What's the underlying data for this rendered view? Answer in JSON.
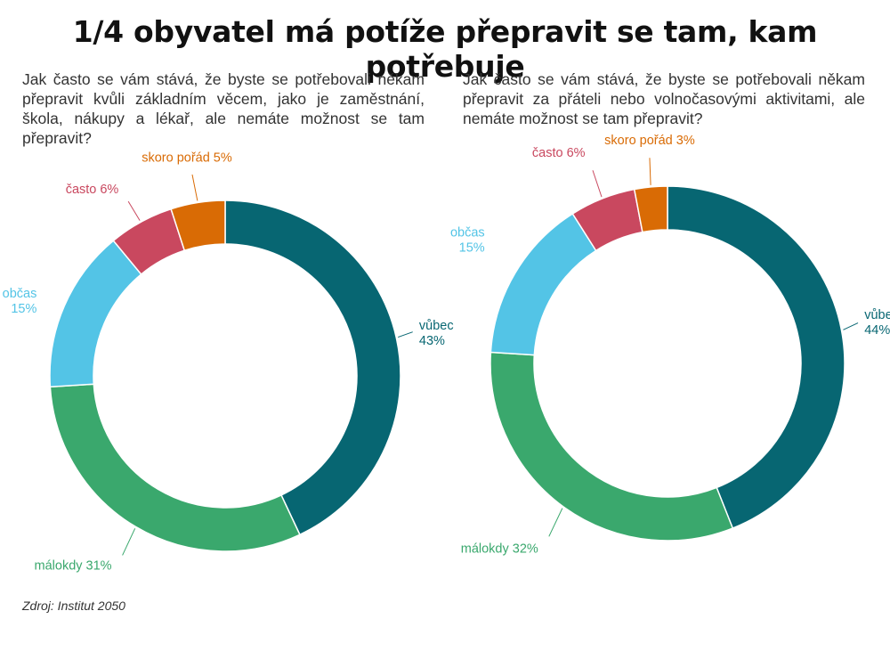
{
  "title": "1/4 obyvatel má potíže přepravit se tam, kam potřebuje",
  "source": "Zdroj: Institut 2050",
  "chart_data": [
    {
      "type": "pie",
      "variant": "donut",
      "question": "Jak často se vám stává, že byste se potřebovali někam přepravit kvůli základním věcem, jako je zaměstnání, škola, nákupy a lékař, ale nemáte možnost se tam přepravit?",
      "slices": [
        {
          "label": "vůbec",
          "value": 43,
          "value_text": "43%",
          "color": "#076672"
        },
        {
          "label": "málokdy",
          "value": 31,
          "value_text": "31%",
          "color": "#3aa86d"
        },
        {
          "label": "občas",
          "value": 15,
          "value_text": "15%",
          "color": "#53c4e6"
        },
        {
          "label": "často",
          "value": 6,
          "value_text": "6%",
          "color": "#c9485f"
        },
        {
          "label": "skoro pořád",
          "value": 5,
          "value_text": "5%",
          "color": "#d96b05"
        }
      ]
    },
    {
      "type": "pie",
      "variant": "donut",
      "question": "Jak často se vám stává, že byste se potřebovali někam přepravit za přáteli nebo volnočasovými aktivitami, ale nemáte možnost se tam přepravit?",
      "slices": [
        {
          "label": "vůbec",
          "value": 44,
          "value_text": "44%",
          "color": "#076672"
        },
        {
          "label": "málokdy",
          "value": 32,
          "value_text": "32%",
          "color": "#3aa86d"
        },
        {
          "label": "občas",
          "value": 15,
          "value_text": "15%",
          "color": "#53c4e6"
        },
        {
          "label": "často",
          "value": 6,
          "value_text": "6%",
          "color": "#c9485f"
        },
        {
          "label": "skoro pořád",
          "value": 3,
          "value_text": "3%",
          "color": "#d96b05"
        }
      ]
    }
  ]
}
